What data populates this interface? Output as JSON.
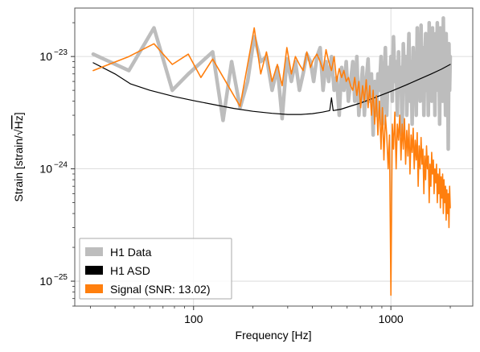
{
  "chart_data": {
    "type": "line",
    "xlabel": "Frequency [Hz]",
    "ylabel_prefix": "Strain [strain/",
    "ylabel_radical": "√",
    "ylabel_hz": "Hz",
    "ylabel_suffix": "]",
    "xscale": "log",
    "yscale": "log",
    "xlim": [
      25,
      2600
    ],
    "ylim": [
      6e-26,
      2.7e-23
    ],
    "grid": true,
    "legend_position": "lower-left",
    "x_major_ticks": [
      {
        "value": 100,
        "label": "100"
      },
      {
        "value": 1000,
        "label": "1000"
      }
    ],
    "y_major_ticks": [
      {
        "value": 1e-25,
        "base": "10",
        "exp": "−25"
      },
      {
        "value": 1e-24,
        "base": "10",
        "exp": "−24"
      },
      {
        "value": 1e-23,
        "base": "10",
        "exp": "−23"
      }
    ],
    "series": [
      {
        "name": "H1 Data",
        "color": "#bdbdbd",
        "points": [
          [
            31,
            1.05e-23
          ],
          [
            47,
            7.5e-24
          ],
          [
            63,
            1.8e-23
          ],
          [
            78,
            5e-24
          ],
          [
            94,
            7e-24
          ],
          [
            125,
            1.1e-23
          ],
          [
            141,
            2.7e-24
          ],
          [
            156,
            9e-24
          ],
          [
            172,
            3.5e-24
          ],
          [
            188,
            6e-24
          ],
          [
            203,
            1.5e-23
          ],
          [
            219,
            9e-24
          ],
          [
            234,
            1e-23
          ],
          [
            250,
            5e-24
          ],
          [
            266,
            8e-24
          ],
          [
            281,
            2.8e-24
          ],
          [
            297,
            9.5e-24
          ],
          [
            313,
            6e-24
          ],
          [
            328,
            9e-24
          ],
          [
            344,
            5e-24
          ],
          [
            359,
            7e-24
          ],
          [
            375,
            1.05e-23
          ],
          [
            391,
            9e-24
          ],
          [
            406,
            6e-24
          ],
          [
            422,
            1e-23
          ],
          [
            438,
            1.2e-23
          ],
          [
            453,
            5e-24
          ],
          [
            469,
            9e-24
          ],
          [
            484,
            6e-24
          ],
          [
            500,
            1e-23
          ],
          [
            516,
            5e-24
          ],
          [
            531,
            6.5e-24
          ],
          [
            547,
            3e-24
          ],
          [
            563,
            8e-24
          ],
          [
            578,
            5e-24
          ],
          [
            594,
            9e-24
          ],
          [
            609,
            4e-24
          ],
          [
            625,
            6e-24
          ],
          [
            641,
            9e-24
          ],
          [
            656,
            4e-24
          ],
          [
            672,
            1e-23
          ],
          [
            688,
            3e-24
          ],
          [
            703,
            5e-24
          ],
          [
            719,
            8e-24
          ],
          [
            734,
            3e-24
          ],
          [
            750,
            6e-24
          ],
          [
            766,
            9.5e-24
          ],
          [
            781,
            4e-24
          ],
          [
            797,
            7e-24
          ],
          [
            813,
            2e-24
          ],
          [
            828,
            6e-24
          ],
          [
            844,
            3e-24
          ],
          [
            859,
            7e-24
          ],
          [
            875,
            5e-24
          ],
          [
            891,
            1e-23
          ],
          [
            906,
            2.5e-24
          ],
          [
            922,
            6e-24
          ],
          [
            938,
            1.2e-23
          ],
          [
            953,
            3e-24
          ],
          [
            969,
            8e-24
          ],
          [
            984,
            5e-24
          ],
          [
            1000,
            1e-23
          ],
          [
            1016,
            4e-24
          ],
          [
            1031,
            1.5e-23
          ],
          [
            1047,
            6e-24
          ],
          [
            1063,
            9e-24
          ],
          [
            1078,
            3e-24
          ],
          [
            1094,
            1.1e-23
          ],
          [
            1109,
            5e-24
          ],
          [
            1125,
            8e-24
          ],
          [
            1141,
            2e-24
          ],
          [
            1156,
            1.3e-23
          ],
          [
            1172,
            6e-24
          ],
          [
            1188,
            1e-23
          ],
          [
            1203,
            3e-24
          ],
          [
            1219,
            7e-24
          ],
          [
            1234,
            1.6e-23
          ],
          [
            1250,
            4e-24
          ],
          [
            1266,
            9e-24
          ],
          [
            1281,
            2.5e-24
          ],
          [
            1297,
            1.2e-23
          ],
          [
            1313,
            6e-24
          ],
          [
            1328,
            1e-23
          ],
          [
            1344,
            3e-24
          ],
          [
            1359,
            1.8e-23
          ],
          [
            1375,
            7e-24
          ],
          [
            1391,
            1.1e-23
          ],
          [
            1406,
            4e-24
          ],
          [
            1422,
            1.9e-23
          ],
          [
            1438,
            5e-24
          ],
          [
            1453,
            1.2e-23
          ],
          [
            1469,
            3e-24
          ],
          [
            1484,
            8e-24
          ],
          [
            1500,
            1.6e-23
          ],
          [
            1516,
            5e-24
          ],
          [
            1531,
            1.3e-23
          ],
          [
            1547,
            3e-24
          ],
          [
            1563,
            2e-23
          ],
          [
            1578,
            6e-24
          ],
          [
            1594,
            1.4e-23
          ],
          [
            1609,
            4e-24
          ],
          [
            1625,
            1.8e-23
          ],
          [
            1641,
            8e-24
          ],
          [
            1656,
            1.2e-23
          ],
          [
            1672,
            3e-24
          ],
          [
            1688,
            1.6e-23
          ],
          [
            1703,
            6e-24
          ],
          [
            1719,
            2e-23
          ],
          [
            1734,
            5e-24
          ],
          [
            1750,
            1.3e-23
          ],
          [
            1766,
            2.5e-24
          ],
          [
            1781,
            1.8e-23
          ],
          [
            1797,
            8e-24
          ],
          [
            1813,
            1.5e-23
          ],
          [
            1828,
            4e-24
          ],
          [
            1844,
            2.2e-23
          ],
          [
            1859,
            7e-24
          ],
          [
            1875,
            1.2e-23
          ],
          [
            1891,
            3e-24
          ],
          [
            1906,
            1.6e-23
          ],
          [
            1922,
            6e-24
          ],
          [
            1938,
            1.1e-23
          ],
          [
            1953,
            1.5e-24
          ],
          [
            1969,
            1.3e-23
          ],
          [
            1984,
            5e-24
          ],
          [
            2000,
            1e-23
          ]
        ]
      },
      {
        "name": "H1 ASD",
        "color": "#000000",
        "points": [
          [
            31,
            8.8e-24
          ],
          [
            40,
            7e-24
          ],
          [
            48,
            5.7e-24
          ],
          [
            60,
            5e-24
          ],
          [
            80,
            4.4e-24
          ],
          [
            100,
            4.05e-24
          ],
          [
            130,
            3.7e-24
          ],
          [
            160,
            3.45e-24
          ],
          [
            200,
            3.25e-24
          ],
          [
            250,
            3.12e-24
          ],
          [
            300,
            3.05e-24
          ],
          [
            350,
            3.05e-24
          ],
          [
            400,
            3.1e-24
          ],
          [
            450,
            3.2e-24
          ],
          [
            490,
            3.3e-24
          ],
          [
            500,
            4.3e-24
          ],
          [
            510,
            3.3e-24
          ],
          [
            560,
            3.4e-24
          ],
          [
            620,
            3.6e-24
          ],
          [
            700,
            3.85e-24
          ],
          [
            800,
            4.2e-24
          ],
          [
            900,
            4.55e-24
          ],
          [
            1000,
            4.9e-24
          ],
          [
            1200,
            5.6e-24
          ],
          [
            1400,
            6.3e-24
          ],
          [
            1600,
            7e-24
          ],
          [
            1800,
            7.7e-24
          ],
          [
            2000,
            8.5e-24
          ]
        ]
      },
      {
        "name": "Signal (SNR: 13.02)",
        "color": "#ff7f0e",
        "points": [
          [
            31,
            7.5e-24
          ],
          [
            47,
            1e-23
          ],
          [
            63,
            1.3e-23
          ],
          [
            78,
            8.5e-24
          ],
          [
            94,
            1.05e-23
          ],
          [
            109,
            6.5e-24
          ],
          [
            125,
            9.5e-24
          ],
          [
            172,
            3.6e-24
          ],
          [
            203,
            1.8e-23
          ],
          [
            219,
            7e-24
          ],
          [
            234,
            1.1e-23
          ],
          [
            250,
            6e-24
          ],
          [
            266,
            8.5e-24
          ],
          [
            281,
            5.5e-24
          ],
          [
            297,
            1.2e-23
          ],
          [
            313,
            7e-24
          ],
          [
            328,
            1e-23
          ],
          [
            344,
            8.5e-24
          ],
          [
            359,
            7.5e-24
          ],
          [
            375,
            1.1e-23
          ],
          [
            391,
            8e-24
          ],
          [
            406,
            9.5e-24
          ],
          [
            422,
            1.05e-23
          ],
          [
            438,
            9e-24
          ],
          [
            453,
            7.5e-24
          ],
          [
            469,
            1.15e-23
          ],
          [
            484,
            9e-24
          ],
          [
            500,
            7.5e-24
          ],
          [
            516,
            1e-23
          ],
          [
            531,
            6e-24
          ],
          [
            547,
            7.8e-24
          ],
          [
            563,
            6.5e-24
          ],
          [
            578,
            7.5e-24
          ],
          [
            594,
            6e-24
          ],
          [
            609,
            6.5e-24
          ],
          [
            625,
            5.5e-24
          ],
          [
            641,
            5e-24
          ],
          [
            656,
            6.5e-24
          ],
          [
            672,
            4.5e-24
          ],
          [
            688,
            6e-24
          ],
          [
            703,
            3.5e-24
          ],
          [
            719,
            5.5e-24
          ],
          [
            734,
            4e-24
          ],
          [
            750,
            6.2e-24
          ],
          [
            766,
            3.5e-24
          ],
          [
            781,
            5.5e-24
          ],
          [
            797,
            3e-24
          ],
          [
            813,
            5e-24
          ],
          [
            828,
            2.5e-24
          ],
          [
            844,
            4.5e-24
          ],
          [
            859,
            2e-24
          ],
          [
            875,
            4e-24
          ],
          [
            891,
            1.5e-24
          ],
          [
            906,
            3.5e-24
          ],
          [
            922,
            1.2e-24
          ],
          [
            938,
            3e-24
          ],
          [
            953,
            2e-24
          ],
          [
            969,
            1e-24
          ],
          [
            984,
            2e-24
          ],
          [
            1000,
            7.5e-26
          ],
          [
            1016,
            2.5e-24
          ],
          [
            1031,
            1.5e-24
          ],
          [
            1047,
            3.2e-24
          ],
          [
            1063,
            1e-24
          ],
          [
            1078,
            2.5e-24
          ],
          [
            1094,
            1.8e-24
          ],
          [
            1109,
            3e-24
          ],
          [
            1125,
            1.2e-24
          ],
          [
            1141,
            2.5e-24
          ],
          [
            1156,
            1.5e-24
          ],
          [
            1172,
            2.8e-24
          ],
          [
            1188,
            1.1e-24
          ],
          [
            1203,
            2.2e-24
          ],
          [
            1219,
            1.3e-24
          ],
          [
            1234,
            2.5e-24
          ],
          [
            1250,
            9e-25
          ],
          [
            1266,
            2e-24
          ],
          [
            1281,
            1.4e-24
          ],
          [
            1297,
            2.3e-24
          ],
          [
            1313,
            1e-24
          ],
          [
            1328,
            1.8e-24
          ],
          [
            1344,
            1.2e-24
          ],
          [
            1359,
            2.1e-24
          ],
          [
            1375,
            7e-25
          ],
          [
            1391,
            1.6e-24
          ],
          [
            1406,
            1e-24
          ],
          [
            1422,
            1.9e-24
          ],
          [
            1438,
            1.1e-24
          ],
          [
            1453,
            1.5e-24
          ],
          [
            1469,
            6e-25
          ],
          [
            1484,
            1.3e-24
          ],
          [
            1500,
            8e-25
          ],
          [
            1516,
            1.6e-24
          ],
          [
            1531,
            1e-24
          ],
          [
            1547,
            1.3e-24
          ],
          [
            1563,
            5e-25
          ],
          [
            1578,
            1.1e-24
          ],
          [
            1594,
            7e-25
          ],
          [
            1609,
            1.4e-24
          ],
          [
            1625,
            9e-25
          ],
          [
            1641,
            1.2e-24
          ],
          [
            1656,
            6e-25
          ],
          [
            1672,
            1e-24
          ],
          [
            1688,
            7.5e-25
          ],
          [
            1703,
            1.1e-24
          ],
          [
            1719,
            5e-25
          ],
          [
            1734,
            9e-25
          ],
          [
            1750,
            6e-25
          ],
          [
            1766,
            1e-24
          ],
          [
            1781,
            4.5e-25
          ],
          [
            1797,
            8.5e-25
          ],
          [
            1813,
            5.5e-25
          ],
          [
            1828,
            9e-25
          ],
          [
            1844,
            4e-25
          ],
          [
            1859,
            8e-25
          ],
          [
            1875,
            5e-25
          ],
          [
            1891,
            7e-25
          ],
          [
            1906,
            3.5e-25
          ],
          [
            1922,
            6.5e-25
          ],
          [
            1938,
            4e-25
          ],
          [
            1953,
            6e-25
          ],
          [
            1969,
            3e-25
          ],
          [
            1984,
            7e-25
          ],
          [
            2000,
            4.5e-25
          ]
        ]
      }
    ]
  }
}
